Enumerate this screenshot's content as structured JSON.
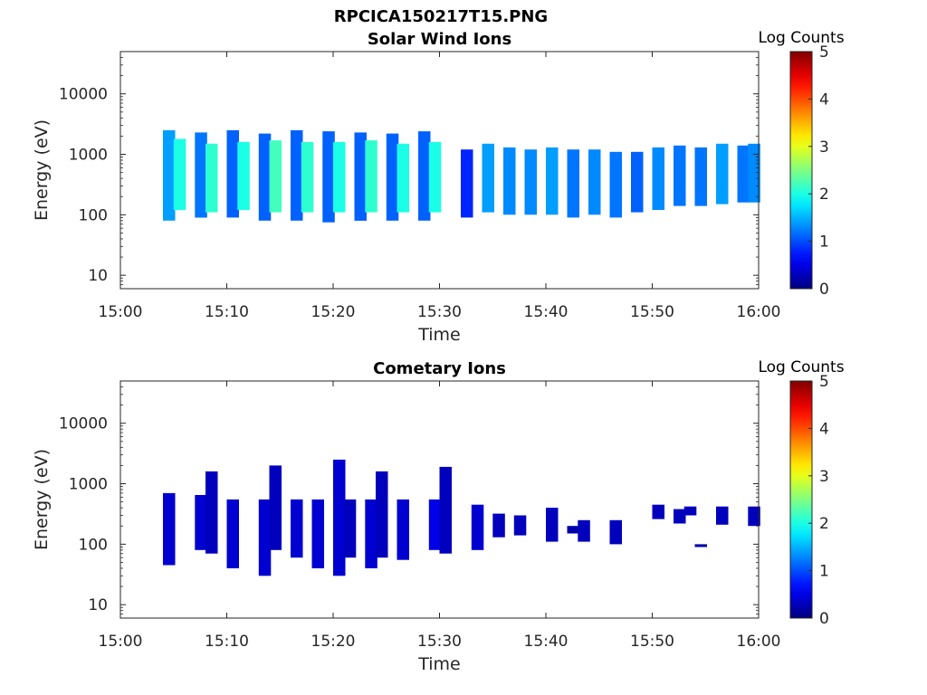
{
  "figure_title": "RPCICA150217T15.PNG",
  "chart_data": [
    {
      "type": "heatmap",
      "title": "Solar Wind Ions",
      "xlabel": "Time",
      "ylabel": "Energy (eV)",
      "yscale": "log",
      "ylim": [
        6,
        50000
      ],
      "xlim": [
        "15:00",
        "16:00"
      ],
      "x_ticks": [
        "15:00",
        "15:10",
        "15:20",
        "15:30",
        "15:40",
        "15:50",
        "16:00"
      ],
      "y_ticks": [
        "10",
        "100",
        "1000",
        "10000"
      ],
      "y_tick_values": [
        10,
        100,
        1000,
        10000
      ],
      "colorbar": {
        "label": "Log Counts",
        "ticks": [
          "0",
          "1",
          "2",
          "3",
          "4",
          "5"
        ],
        "range": [
          0,
          5
        ],
        "colormap": "jet"
      },
      "cells": [
        {
          "t": "15:04",
          "emin": 80,
          "emax": 2500,
          "value": 1.4
        },
        {
          "t": "15:05",
          "emin": 120,
          "emax": 1800,
          "value": 2.0
        },
        {
          "t": "15:07",
          "emin": 90,
          "emax": 2300,
          "value": 1.2
        },
        {
          "t": "15:08",
          "emin": 110,
          "emax": 1500,
          "value": 2.1
        },
        {
          "t": "15:10",
          "emin": 90,
          "emax": 2500,
          "value": 1.1
        },
        {
          "t": "15:11",
          "emin": 120,
          "emax": 1600,
          "value": 2.0
        },
        {
          "t": "15:13",
          "emin": 80,
          "emax": 2200,
          "value": 1.1
        },
        {
          "t": "15:14",
          "emin": 110,
          "emax": 1700,
          "value": 2.2
        },
        {
          "t": "15:16",
          "emin": 80,
          "emax": 2500,
          "value": 1.1
        },
        {
          "t": "15:17",
          "emin": 110,
          "emax": 1600,
          "value": 2.1
        },
        {
          "t": "15:19",
          "emin": 75,
          "emax": 2400,
          "value": 1.1
        },
        {
          "t": "15:20",
          "emin": 110,
          "emax": 1600,
          "value": 2.0
        },
        {
          "t": "15:22",
          "emin": 80,
          "emax": 2300,
          "value": 1.1
        },
        {
          "t": "15:23",
          "emin": 110,
          "emax": 1700,
          "value": 2.1
        },
        {
          "t": "15:25",
          "emin": 80,
          "emax": 2200,
          "value": 1.1
        },
        {
          "t": "15:26",
          "emin": 110,
          "emax": 1500,
          "value": 2.0
        },
        {
          "t": "15:28",
          "emin": 80,
          "emax": 2400,
          "value": 1.1
        },
        {
          "t": "15:29",
          "emin": 110,
          "emax": 1600,
          "value": 2.0
        },
        {
          "t": "15:32",
          "emin": 90,
          "emax": 1200,
          "value": 0.8
        },
        {
          "t": "15:34",
          "emin": 110,
          "emax": 1500,
          "value": 1.4
        },
        {
          "t": "15:36",
          "emin": 100,
          "emax": 1300,
          "value": 1.3
        },
        {
          "t": "15:38",
          "emin": 100,
          "emax": 1200,
          "value": 1.3
        },
        {
          "t": "15:40",
          "emin": 100,
          "emax": 1300,
          "value": 1.4
        },
        {
          "t": "15:42",
          "emin": 90,
          "emax": 1200,
          "value": 1.2
        },
        {
          "t": "15:44",
          "emin": 100,
          "emax": 1200,
          "value": 1.3
        },
        {
          "t": "15:46",
          "emin": 90,
          "emax": 1100,
          "value": 1.2
        },
        {
          "t": "15:48",
          "emin": 110,
          "emax": 1100,
          "value": 1.1
        },
        {
          "t": "15:50",
          "emin": 120,
          "emax": 1300,
          "value": 1.3
        },
        {
          "t": "15:52",
          "emin": 140,
          "emax": 1400,
          "value": 1.2
        },
        {
          "t": "15:54",
          "emin": 140,
          "emax": 1300,
          "value": 1.2
        },
        {
          "t": "15:56",
          "emin": 150,
          "emax": 1500,
          "value": 1.4
        },
        {
          "t": "15:58",
          "emin": 160,
          "emax": 1400,
          "value": 1.2
        },
        {
          "t": "15:59",
          "emin": 160,
          "emax": 1500,
          "value": 1.3
        }
      ]
    },
    {
      "type": "heatmap",
      "title": "Cometary Ions",
      "xlabel": "Time",
      "ylabel": "Energy (eV)",
      "yscale": "log",
      "ylim": [
        6,
        50000
      ],
      "xlim": [
        "15:00",
        "16:00"
      ],
      "x_ticks": [
        "15:00",
        "15:10",
        "15:20",
        "15:30",
        "15:40",
        "15:50",
        "16:00"
      ],
      "y_ticks": [
        "10",
        "100",
        "1000",
        "10000"
      ],
      "y_tick_values": [
        10,
        100,
        1000,
        10000
      ],
      "colorbar": {
        "label": "Log Counts",
        "ticks": [
          "0",
          "1",
          "2",
          "3",
          "4",
          "5"
        ],
        "range": [
          0,
          5
        ],
        "colormap": "jet"
      },
      "cells": [
        {
          "t": "15:04",
          "emin": 45,
          "emax": 700,
          "value": 0.4
        },
        {
          "t": "15:07",
          "emin": 80,
          "emax": 650,
          "value": 0.4
        },
        {
          "t": "15:08",
          "emin": 70,
          "emax": 1600,
          "value": 0.3
        },
        {
          "t": "15:10",
          "emin": 40,
          "emax": 550,
          "value": 0.4
        },
        {
          "t": "15:13",
          "emin": 30,
          "emax": 550,
          "value": 0.4
        },
        {
          "t": "15:14",
          "emin": 80,
          "emax": 2000,
          "value": 0.3
        },
        {
          "t": "15:16",
          "emin": 60,
          "emax": 550,
          "value": 0.4
        },
        {
          "t": "15:18",
          "emin": 40,
          "emax": 550,
          "value": 0.4
        },
        {
          "t": "15:20",
          "emin": 30,
          "emax": 2500,
          "value": 0.4
        },
        {
          "t": "15:21",
          "emin": 60,
          "emax": 550,
          "value": 0.3
        },
        {
          "t": "15:23",
          "emin": 40,
          "emax": 550,
          "value": 0.4
        },
        {
          "t": "15:24",
          "emin": 60,
          "emax": 1600,
          "value": 0.3
        },
        {
          "t": "15:26",
          "emin": 55,
          "emax": 550,
          "value": 0.4
        },
        {
          "t": "15:29",
          "emin": 80,
          "emax": 550,
          "value": 0.5
        },
        {
          "t": "15:30",
          "emin": 70,
          "emax": 1900,
          "value": 0.3
        },
        {
          "t": "15:33",
          "emin": 80,
          "emax": 450,
          "value": 0.4
        },
        {
          "t": "15:35",
          "emin": 130,
          "emax": 320,
          "value": 0.3
        },
        {
          "t": "15:37",
          "emin": 140,
          "emax": 300,
          "value": 0.3
        },
        {
          "t": "15:40",
          "emin": 110,
          "emax": 400,
          "value": 0.3
        },
        {
          "t": "15:42",
          "emin": 150,
          "emax": 200,
          "value": 0.2
        },
        {
          "t": "15:43",
          "emin": 110,
          "emax": 250,
          "value": 0.3
        },
        {
          "t": "15:46",
          "emin": 100,
          "emax": 250,
          "value": 0.3
        },
        {
          "t": "15:50",
          "emin": 260,
          "emax": 450,
          "value": 0.3
        },
        {
          "t": "15:52",
          "emin": 220,
          "emax": 380,
          "value": 0.3
        },
        {
          "t": "15:53",
          "emin": 300,
          "emax": 420,
          "value": 0.3
        },
        {
          "t": "15:54",
          "emin": 90,
          "emax": 100,
          "value": 0.2
        },
        {
          "t": "15:56",
          "emin": 210,
          "emax": 420,
          "value": 0.3
        },
        {
          "t": "15:59",
          "emin": 200,
          "emax": 420,
          "value": 0.3
        }
      ]
    }
  ]
}
